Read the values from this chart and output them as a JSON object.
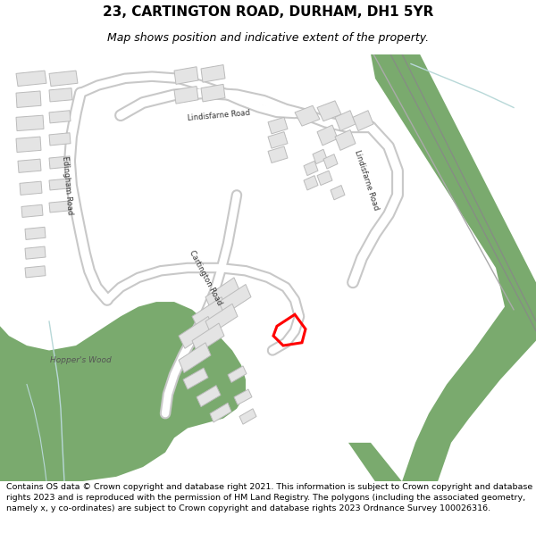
{
  "title": "23, CARTINGTON ROAD, DURHAM, DH1 5YR",
  "subtitle": "Map shows position and indicative extent of the property.",
  "footer": "Contains OS data © Crown copyright and database right 2021. This information is subject to Crown copyright and database rights 2023 and is reproduced with the permission of HM Land Registry. The polygons (including the associated geometry, namely x, y co-ordinates) are subject to Crown copyright and database rights 2023 Ordnance Survey 100026316.",
  "bg_color": "#ffffff",
  "map_bg": "#f7f7f7",
  "green_color": "#7aaa6e",
  "building_color": "#e4e4e4",
  "building_edge": "#bbbbbb",
  "highlight_color": "#ff0000",
  "road_edge_color": "#c8c8c8",
  "road_fill_color": "#ffffff",
  "water_color": "#b8d8d8",
  "title_fontsize": 11,
  "subtitle_fontsize": 9,
  "footer_fontsize": 6.8,
  "label_color": "#333333",
  "label_fontsize": 6.0
}
